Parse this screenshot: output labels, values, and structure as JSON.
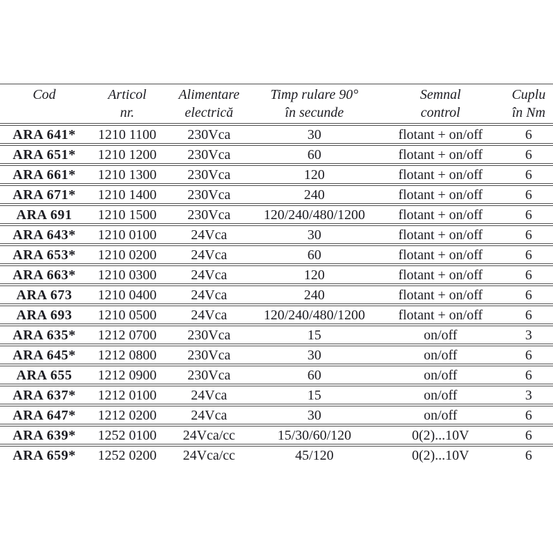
{
  "document": {
    "kind": "product-specification-table",
    "language": "Romanian",
    "background_color": "#ffffff",
    "text_color": "#1c1c22",
    "rule_color": "#4d4d4d"
  },
  "table": {
    "columns": [
      {
        "id": "cod",
        "line1": "Cod",
        "line2": ""
      },
      {
        "id": "articol",
        "line1": "Articol",
        "line2": "nr."
      },
      {
        "id": "alimentare",
        "line1": "Alimentare",
        "line2": "electrică"
      },
      {
        "id": "timp",
        "line1": "Timp rulare 90°",
        "line2": "în secunde"
      },
      {
        "id": "semnal",
        "line1": "Semnal",
        "line2": "control"
      },
      {
        "id": "cuplu",
        "line1": "Cuplu",
        "line2": "în Nm"
      }
    ],
    "rows": [
      [
        "ARA 641*",
        "1210 1100",
        "230Vca",
        "30",
        "flotant + on/off",
        "6"
      ],
      [
        "ARA 651*",
        "1210 1200",
        "230Vca",
        "60",
        "flotant + on/off",
        "6"
      ],
      [
        "ARA 661*",
        "1210 1300",
        "230Vca",
        "120",
        "flotant + on/off",
        "6"
      ],
      [
        "ARA 671*",
        "1210 1400",
        "230Vca",
        "240",
        "flotant + on/off",
        "6"
      ],
      [
        "ARA 691",
        "1210 1500",
        "230Vca",
        "120/240/480/1200",
        "flotant + on/off",
        "6"
      ],
      [
        "ARA 643*",
        "1210 0100",
        "24Vca",
        "30",
        "flotant + on/off",
        "6"
      ],
      [
        "ARA 653*",
        "1210 0200",
        "24Vca",
        "60",
        "flotant + on/off",
        "6"
      ],
      [
        "ARA 663*",
        "1210 0300",
        "24Vca",
        "120",
        "flotant + on/off",
        "6"
      ],
      [
        "ARA 673",
        "1210 0400",
        "24Vca",
        "240",
        "flotant + on/off",
        "6"
      ],
      [
        "ARA 693",
        "1210 0500",
        "24Vca",
        "120/240/480/1200",
        "flotant + on/off",
        "6"
      ],
      [
        "ARA 635*",
        "1212 0700",
        "230Vca",
        "15",
        "on/off",
        "3"
      ],
      [
        "ARA 645*",
        "1212 0800",
        "230Vca",
        "30",
        "on/off",
        "6"
      ],
      [
        "ARA 655",
        "1212 0900",
        "230Vca",
        "60",
        "on/off",
        "6"
      ],
      [
        "ARA 637*",
        "1212 0100",
        "24Vca",
        "15",
        "on/off",
        "3"
      ],
      [
        "ARA 647*",
        "1212 0200",
        "24Vca",
        "30",
        "on/off",
        "6"
      ],
      [
        "ARA 639*",
        "1252 0100",
        "24Vca/cc",
        "15/30/60/120",
        "0(2)...10V",
        "6"
      ],
      [
        "ARA 659*",
        "1252 0200",
        "24Vca/cc",
        "45/120",
        "0(2)...10V",
        "6"
      ]
    ]
  }
}
